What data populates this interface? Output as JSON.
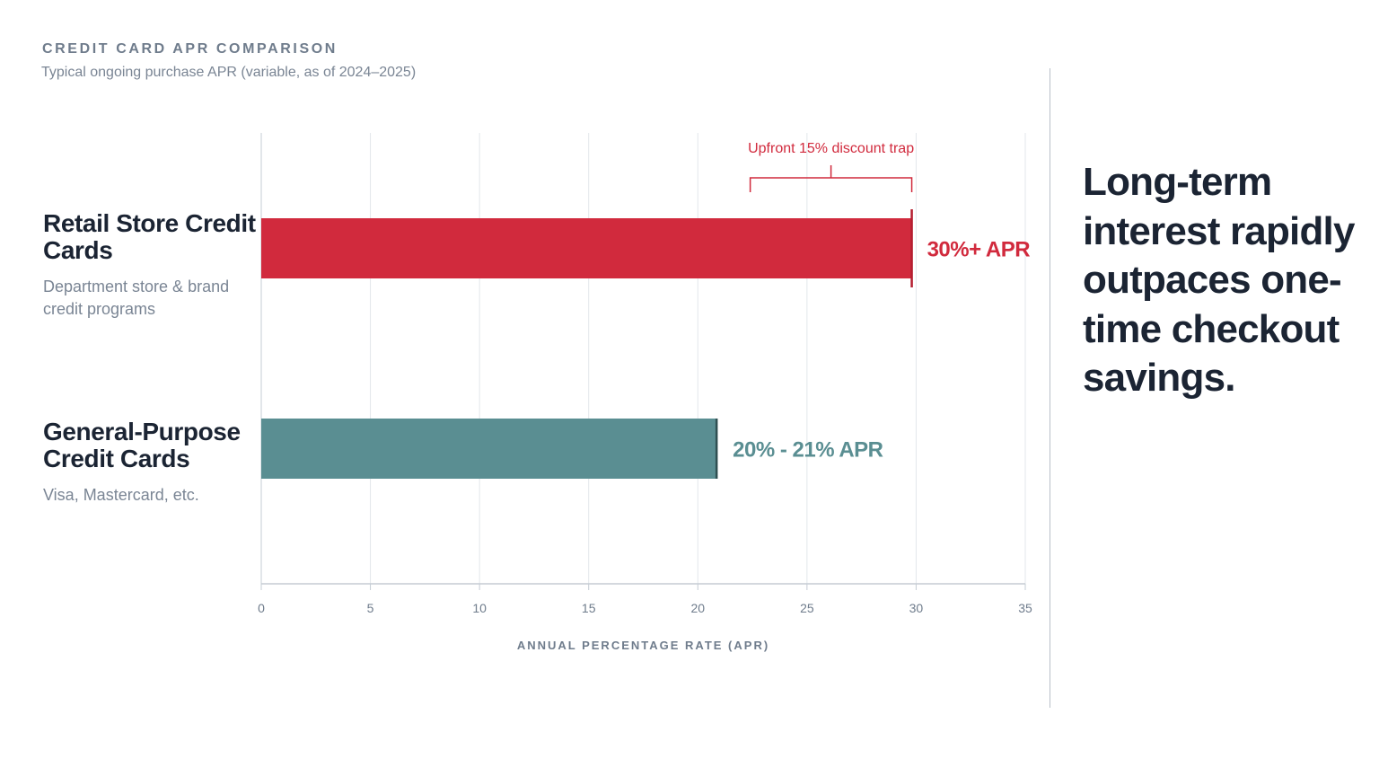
{
  "header": {
    "title": "CREDIT CARD APR COMPARISON",
    "subtitle": "Typical ongoing purchase APR (variable, as of 2024–2025)"
  },
  "categories_detail": [
    {
      "name": "Retail Store Credit Cards",
      "description": "Department store & brand credit programs"
    },
    {
      "name": "General-Purpose Credit Cards",
      "description": "Visa, Mastercard, etc."
    }
  ],
  "takeaway": "Long-term interest rapidly outpaces one-time checkout savings.",
  "colors": {
    "retail": "#d12a3d",
    "general": "#5a8e92",
    "grid": "#e3e7eb",
    "axis": "#c5ccd4"
  },
  "chart_data": {
    "type": "bar",
    "orientation": "horizontal",
    "categories": [
      "Retail Store Credit Cards",
      "General-Purpose Credit Cards"
    ],
    "values": [
      29.8,
      20.9
    ],
    "value_labels": [
      "30%+ APR",
      "20% - 21% APR"
    ],
    "xlabel": "ANNUAL PERCENTAGE RATE (APR)",
    "ylabel": "",
    "xlim": [
      0,
      35
    ],
    "xticks": [
      0,
      5,
      10,
      15,
      20,
      25,
      30,
      35
    ],
    "grid": true,
    "annotation": {
      "text": "Upfront 15% discount trap",
      "from": 22.4,
      "to": 29.8
    }
  }
}
